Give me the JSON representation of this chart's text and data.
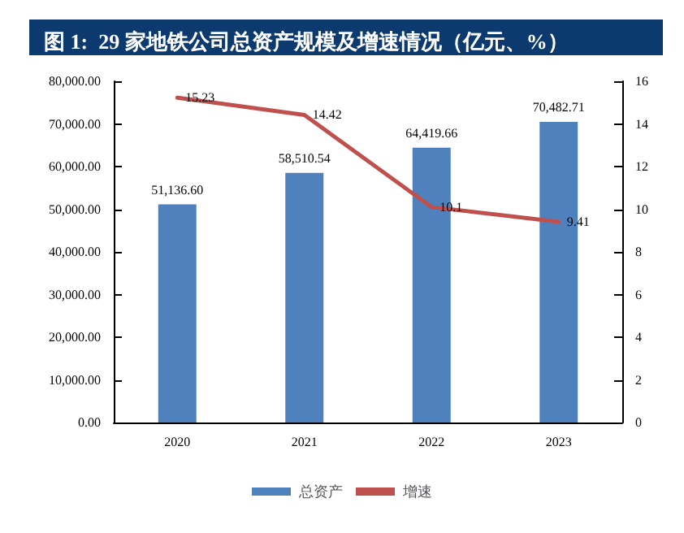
{
  "chart_data": {
    "type": "bar",
    "title": "图 1:  29 家地铁公司总资产规模及增速情况（亿元、%）",
    "categories": [
      "2020",
      "2021",
      "2022",
      "2023"
    ],
    "series": [
      {
        "name": "总资产",
        "color": "#4f81bd",
        "values": [
          51136.6,
          58510.54,
          64419.66,
          70482.71
        ],
        "value_labels": [
          "51,136.60",
          "58,510.54",
          "64,419.66",
          "70,482.71"
        ]
      },
      {
        "name": "增速",
        "type": "line",
        "axis": "y2",
        "color": "#c0504d",
        "values": [
          15.23,
          14.42,
          10.1,
          9.41
        ],
        "value_labels": [
          "15.23",
          "14.42",
          "10.1",
          "9.41"
        ]
      }
    ],
    "ylim": [
      0,
      80000
    ],
    "yticks": [
      {
        "value": 0,
        "label": "0.00"
      },
      {
        "value": 10000,
        "label": "10,000.00"
      },
      {
        "value": 20000,
        "label": "20,000.00"
      },
      {
        "value": 30000,
        "label": "30,000.00"
      },
      {
        "value": 40000,
        "label": "40,000.00"
      },
      {
        "value": 50000,
        "label": "50,000.00"
      },
      {
        "value": 60000,
        "label": "60,000.00"
      },
      {
        "value": 70000,
        "label": "70,000.00"
      },
      {
        "value": 80000,
        "label": "80,000.00"
      }
    ],
    "y2lim": [
      0,
      16
    ],
    "y2ticks": [
      0,
      2,
      4,
      6,
      8,
      10,
      12,
      14,
      16
    ],
    "grid": false,
    "legend": "bottom",
    "marker": "none",
    "line_style": "solid"
  }
}
